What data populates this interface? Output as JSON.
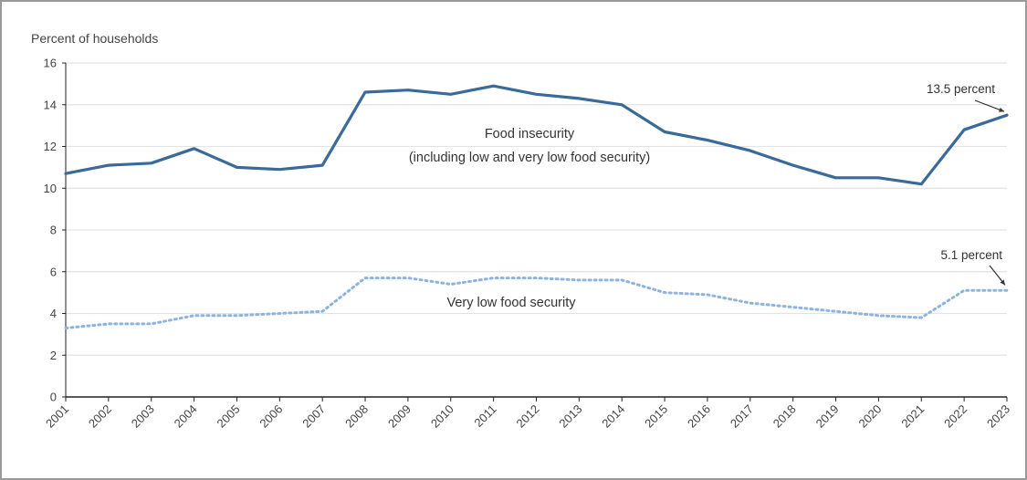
{
  "chart_data": {
    "type": "line",
    "title": "",
    "ylabel": "Percent of households",
    "xlabel": "",
    "ylim": [
      0,
      16
    ],
    "yticks": [
      0,
      2,
      4,
      6,
      8,
      10,
      12,
      14,
      16
    ],
    "grid": "horizontal",
    "x": [
      "2001",
      "2002",
      "2003",
      "2004",
      "2005",
      "2006",
      "2007",
      "2008",
      "2009",
      "2010",
      "2011",
      "2012",
      "2013",
      "2014",
      "2015",
      "2016",
      "2017",
      "2018",
      "2019",
      "2020",
      "2021",
      "2022",
      "2023"
    ],
    "series": [
      {
        "style": "solid",
        "color": "#3a6a9a",
        "values": [
          10.7,
          11.1,
          11.2,
          11.9,
          11.0,
          10.9,
          11.1,
          14.6,
          14.7,
          14.5,
          14.9,
          14.5,
          14.3,
          14.0,
          12.7,
          12.3,
          11.8,
          11.1,
          10.5,
          10.5,
          10.2,
          12.8,
          13.5
        ]
      },
      {
        "style": "dotted",
        "color": "#8fb4dc",
        "values": [
          3.3,
          3.5,
          3.5,
          3.9,
          3.9,
          4.0,
          4.1,
          5.7,
          5.7,
          5.4,
          5.7,
          5.7,
          5.6,
          5.6,
          5.0,
          4.9,
          4.5,
          4.3,
          4.1,
          3.9,
          3.8,
          5.1,
          5.1
        ]
      }
    ],
    "annotations": {
      "food_insecurity_line1": "Food insecurity",
      "food_insecurity_line2": "(including low and very low food security)",
      "very_low": "Very low food security",
      "callout_top": "13.5 percent",
      "callout_bottom": "5.1 percent"
    }
  }
}
